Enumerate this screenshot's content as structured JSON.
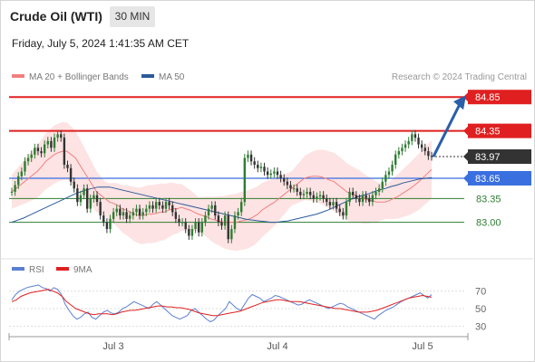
{
  "header": {
    "title": "Crude Oil (WTI)",
    "timeframe": "30 MIN",
    "datetime": "Friday, July 5, 2024 1:41:35 AM CET"
  },
  "legend": {
    "ma20_label": "MA 20 + Bollinger Bands",
    "ma20_color": "#f08080",
    "ma50_label": "MA 50",
    "ma50_color": "#2a5a9a",
    "credit": "Research © 2024 Trading Central"
  },
  "rsi_legend": {
    "rsi_label": "RSI",
    "rsi_color": "#5b7fd1",
    "ma_label": "9MA",
    "ma_color": "#e02020"
  },
  "colors": {
    "resistance": "#e02020",
    "pivot": "#3a6fe0",
    "support": "#2e7d32",
    "last_price": "#333333",
    "arrow": "#2a5ea8",
    "band_fill": "#fde3e3",
    "up_candle": "#2e7d32",
    "down_candle": "#333333"
  },
  "chart_data": [
    {
      "type": "candlestick",
      "y_range": [
        82.54,
        85.0
      ],
      "x_ticks": [
        "Jul 3",
        "Jul 4",
        "Jul 5"
      ],
      "levels": [
        {
          "value": "84.85",
          "style": "resistance"
        },
        {
          "value": "84.35",
          "style": "resistance"
        },
        {
          "value": "83.97",
          "style": "last"
        },
        {
          "value": "83.65",
          "style": "pivot"
        },
        {
          "value": "83.35",
          "style": "support"
        },
        {
          "value": "83.00",
          "style": "support"
        }
      ],
      "close_series": [
        83.45,
        83.55,
        83.68,
        83.75,
        83.9,
        83.95,
        84.0,
        84.1,
        84.05,
        84.02,
        84.15,
        84.2,
        84.1,
        84.25,
        84.3,
        84.25,
        83.85,
        83.8,
        83.6,
        83.5,
        83.3,
        83.4,
        83.5,
        83.2,
        83.35,
        83.4,
        83.3,
        83.1,
        83.0,
        82.9,
        83.05,
        83.15,
        83.2,
        83.1,
        83.15,
        83.05,
        83.1,
        83.15,
        83.2,
        83.1,
        83.15,
        83.2,
        83.25,
        83.2,
        83.3,
        83.25,
        83.2,
        83.3,
        83.25,
        83.15,
        83.05,
        83.0,
        83.0,
        82.9,
        82.8,
        82.9,
        83.0,
        82.85,
        83.0,
        83.1,
        83.2,
        83.25,
        83.1,
        83.0,
        82.95,
        83.1,
        82.75,
        82.9,
        83.1,
        83.15,
        83.3,
        83.95,
        84.0,
        83.9,
        83.85,
        83.8,
        83.82,
        83.75,
        83.7,
        83.72,
        83.75,
        83.7,
        83.65,
        83.6,
        83.55,
        83.5,
        83.5,
        83.45,
        83.4,
        83.42,
        83.45,
        83.4,
        83.35,
        83.38,
        83.4,
        83.35,
        83.3,
        83.25,
        83.3,
        83.2,
        83.15,
        83.1,
        83.3,
        83.45,
        83.4,
        83.35,
        83.3,
        83.4,
        83.35,
        83.3,
        83.4,
        83.45,
        83.5,
        83.6,
        83.7,
        83.75,
        83.85,
        84.0,
        84.05,
        84.1,
        84.15,
        84.2,
        84.3,
        84.25,
        84.15,
        84.1,
        84.05,
        83.98,
        83.97
      ],
      "ma20": [
        83.45,
        83.5,
        83.55,
        83.6,
        83.65,
        83.7,
        83.75,
        83.82,
        83.9,
        83.95,
        84.0,
        84.03,
        84.05,
        84.05,
        84.0,
        83.95,
        83.85,
        83.75,
        83.65,
        83.55,
        83.45,
        83.4,
        83.35,
        83.3,
        83.28,
        83.25,
        83.2,
        83.18,
        83.15,
        83.12,
        83.1,
        83.1,
        83.12,
        83.12,
        83.13,
        83.15,
        83.15,
        83.18,
        83.2,
        83.2,
        83.22,
        83.2,
        83.18,
        83.15,
        83.12,
        83.1,
        83.08,
        83.05,
        83.03,
        83.02,
        83.0,
        83.0,
        83.0,
        83.0,
        83.02,
        83.03,
        83.05,
        83.08,
        83.12,
        83.18,
        83.22,
        83.26,
        83.3,
        83.35,
        83.4,
        83.45,
        83.5,
        83.55,
        83.6,
        83.65,
        83.67,
        83.68,
        83.68,
        83.67,
        83.65,
        83.62,
        83.6,
        83.55,
        83.5,
        83.45,
        83.42,
        83.4,
        83.38,
        83.35,
        83.33,
        83.32,
        83.3,
        83.3,
        83.3,
        83.32,
        83.35,
        83.38,
        83.42,
        83.46,
        83.5,
        83.55,
        83.6,
        83.66,
        83.72,
        83.78
      ],
      "ma50": [
        83.0,
        83.03,
        83.06,
        83.1,
        83.14,
        83.18,
        83.22,
        83.26,
        83.3,
        83.34,
        83.38,
        83.42,
        83.45,
        83.48,
        83.5,
        83.52,
        83.52,
        83.52,
        83.5,
        83.48,
        83.46,
        83.44,
        83.42,
        83.4,
        83.38,
        83.36,
        83.34,
        83.32,
        83.3,
        83.28,
        83.26,
        83.24,
        83.22,
        83.2,
        83.18,
        83.16,
        83.14,
        83.12,
        83.1,
        83.08,
        83.06,
        83.04,
        83.03,
        83.02,
        83.01,
        83.0,
        83.0,
        83.01,
        83.02,
        83.04,
        83.06,
        83.08,
        83.1,
        83.12,
        83.15,
        83.18,
        83.22,
        83.26,
        83.3,
        83.34,
        83.37,
        83.4,
        83.42,
        83.45,
        83.48,
        83.5,
        83.53,
        83.55,
        83.58,
        83.6,
        83.62,
        83.64,
        83.65,
        83.66
      ],
      "forecast_arrow": {
        "from": 83.97,
        "to": 84.85
      }
    },
    {
      "type": "line",
      "y_ticks": [
        "70",
        "50",
        "30"
      ],
      "y_range": [
        20,
        80
      ],
      "rsi": [
        60,
        66,
        70,
        72,
        74,
        75,
        76,
        77,
        74,
        73,
        70,
        74,
        72,
        66,
        55,
        48,
        42,
        38,
        40,
        44,
        46,
        40,
        38,
        42,
        46,
        48,
        45,
        44,
        46,
        50,
        52,
        55,
        58,
        56,
        54,
        52,
        50,
        55,
        58,
        54,
        50,
        46,
        42,
        40,
        38,
        40,
        42,
        48,
        50,
        46,
        42,
        38,
        35,
        37,
        42,
        46,
        50,
        58,
        54,
        50,
        48,
        55,
        62,
        66,
        64,
        62,
        58,
        60,
        62,
        65,
        64,
        62,
        60,
        58,
        56,
        54,
        55,
        58,
        60,
        58,
        56,
        54,
        52,
        50,
        52,
        54,
        56,
        55,
        52,
        50,
        48,
        46,
        44,
        42,
        40,
        38,
        42,
        45,
        48,
        50,
        52,
        55,
        58,
        60,
        62,
        64,
        66,
        68,
        65,
        62,
        66
      ],
      "ma9": [
        58,
        60,
        64,
        66,
        68,
        69,
        70,
        71,
        72,
        70,
        68,
        64,
        58,
        54,
        50,
        48,
        46,
        44,
        43,
        44,
        44,
        44,
        43,
        44,
        46,
        47,
        48,
        48,
        49,
        50,
        51,
        52,
        53,
        53,
        52,
        52,
        51,
        51,
        50,
        49,
        47,
        45,
        44,
        43,
        42,
        42,
        43,
        44,
        45,
        46,
        47,
        49,
        51,
        53,
        55,
        57,
        58,
        59,
        60,
        60,
        59,
        58,
        58,
        58,
        57,
        56,
        55,
        54,
        53,
        52,
        51,
        50,
        50,
        49,
        48,
        47,
        46,
        46,
        46,
        47,
        48,
        50,
        52,
        54,
        56,
        58,
        60,
        62,
        63,
        64,
        65,
        64,
        63
      ]
    }
  ]
}
